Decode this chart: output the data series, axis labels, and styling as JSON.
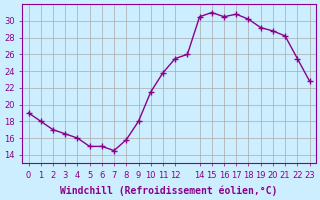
{
  "x": [
    0,
    1,
    2,
    3,
    4,
    5,
    6,
    7,
    8,
    9,
    10,
    11,
    12,
    13,
    14,
    15,
    16,
    17,
    18,
    19,
    20,
    21,
    22,
    23
  ],
  "y": [
    19.0,
    18.0,
    17.0,
    16.5,
    16.0,
    15.0,
    15.0,
    14.5,
    15.8,
    18.0,
    21.5,
    23.8,
    25.5,
    26.0,
    30.5,
    31.0,
    30.5,
    30.8,
    30.2,
    29.2,
    28.8,
    28.2,
    25.5,
    22.8
  ],
  "line_color": "#8B008B",
  "marker": "+",
  "bg_color": "#cceeff",
  "grid_color": "#aaaaaa",
  "xlabel": "Windchill (Refroidissement éolien,°C)",
  "ylim": [
    13,
    32
  ],
  "xlim": [
    -0.5,
    23.5
  ],
  "yticks": [
    14,
    16,
    18,
    20,
    22,
    24,
    26,
    28,
    30
  ],
  "xticks": [
    0,
    1,
    2,
    3,
    4,
    5,
    6,
    7,
    8,
    9,
    10,
    11,
    12,
    14,
    15,
    16,
    17,
    18,
    19,
    20,
    21,
    22,
    23
  ],
  "xtick_labels": [
    "0",
    "1",
    "2",
    "3",
    "4",
    "5",
    "6",
    "7",
    "8",
    "9",
    "10",
    "11",
    "12",
    "14",
    "15",
    "16",
    "17",
    "18",
    "19",
    "20",
    "21",
    "22",
    "23"
  ],
  "xlabel_fontsize": 7,
  "tick_fontsize": 6,
  "axis_color": "#8B008B"
}
